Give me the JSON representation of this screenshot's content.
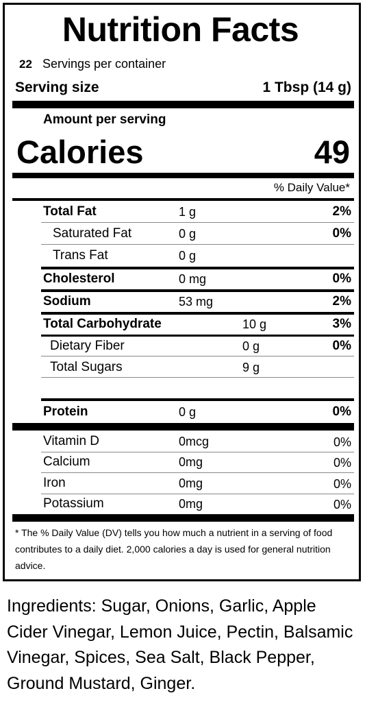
{
  "title": "Nutrition Facts",
  "servings": {
    "count": "22",
    "text": "Servings per container"
  },
  "serving_size": {
    "label": "Serving size",
    "value": "1 Tbsp (14 g)"
  },
  "amount_per_serving": "Amount per serving",
  "calories": {
    "label": "Calories",
    "value": "49"
  },
  "daily_value_header": "% Daily Value*",
  "nutrients": [
    {
      "name": "Total Fat",
      "amount": "1 g",
      "dv": "2%"
    },
    {
      "name": "Saturated Fat",
      "amount": "0 g",
      "dv": "0%"
    },
    {
      "name": "Trans Fat",
      "amount": "0 g",
      "dv": ""
    },
    {
      "name": "Cholesterol",
      "amount": "0 mg",
      "dv": "0%"
    },
    {
      "name": "Sodium",
      "amount": "53 mg",
      "dv": "2%"
    },
    {
      "name": "Total Carbohydrate",
      "amount": "10 g",
      "dv": "3%"
    },
    {
      "name": "Dietary Fiber",
      "amount": "0 g",
      "dv": "0%"
    },
    {
      "name": "Total Sugars",
      "amount": "9 g",
      "dv": ""
    },
    {
      "name": "Protein",
      "amount": "0 g",
      "dv": "0%"
    }
  ],
  "vitamins": [
    {
      "name": "Vitamin D",
      "amount": "0mcg",
      "dv": "0%"
    },
    {
      "name": "Calcium",
      "amount": "0mg",
      "dv": "0%"
    },
    {
      "name": "Iron",
      "amount": "0mg",
      "dv": "0%"
    },
    {
      "name": "Potassium",
      "amount": "0mg",
      "dv": "0%"
    }
  ],
  "footnote": "* The % Daily Value (DV) tells you how much a nutrient in a serving of food contributes to a daily diet.  2,000 calories a day is used for general nutrition advice.",
  "ingredients": "Ingredients: Sugar, Onions, Garlic, Apple Cider Vinegar, Lemon Juice, Pectin, Balsamic Vinegar, Spices, Sea Salt, Black Pepper, Ground Mustard, Ginger."
}
